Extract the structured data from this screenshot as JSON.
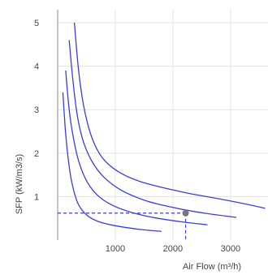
{
  "chart_data": {
    "type": "line",
    "xlabel": "Air Flow (m³/h)",
    "ylabel": "SFP (kW/m3/s)",
    "xlim": [
      0,
      3650
    ],
    "ylim": [
      0,
      5.3
    ],
    "x_ticks": [
      1000,
      2000,
      3000
    ],
    "x_tick_labels": [
      "1000",
      "2000",
      "3000"
    ],
    "y_ticks": [
      1,
      2,
      3,
      4,
      5
    ],
    "y_tick_labels": [
      "1",
      "2",
      "3",
      "4",
      "5"
    ],
    "grid": true,
    "series_color": "#3a3fd0",
    "series": [
      {
        "x": [
          90,
          130,
          180,
          250,
          350,
          500,
          700,
          1000,
          1400,
          1800
        ],
        "y": [
          3.4,
          2.6,
          1.9,
          1.3,
          0.85,
          0.58,
          0.43,
          0.33,
          0.25,
          0.2
        ]
      },
      {
        "x": [
          140,
          200,
          280,
          380,
          520,
          700,
          950,
          1300,
          1700,
          2150,
          2600
        ],
        "y": [
          3.9,
          3.0,
          2.3,
          1.75,
          1.32,
          1.02,
          0.8,
          0.63,
          0.51,
          0.42,
          0.35
        ]
      },
      {
        "x": [
          200,
          270,
          350,
          450,
          600,
          800,
          1100,
          1500,
          1900,
          2400,
          3100
        ],
        "y": [
          4.6,
          3.6,
          2.8,
          2.25,
          1.8,
          1.45,
          1.15,
          0.92,
          0.78,
          0.65,
          0.52
        ]
      },
      {
        "x": [
          290,
          360,
          450,
          570,
          720,
          900,
          1150,
          1450,
          1850,
          2300,
          2800,
          3300,
          3600
        ],
        "y": [
          5.0,
          3.95,
          3.1,
          2.45,
          2.0,
          1.72,
          1.5,
          1.34,
          1.2,
          1.07,
          0.95,
          0.82,
          0.73
        ]
      }
    ],
    "operating_point": {
      "x": 2220,
      "y": 0.62,
      "color": "#777777"
    },
    "reference_line_color": "#3a3fd0"
  }
}
